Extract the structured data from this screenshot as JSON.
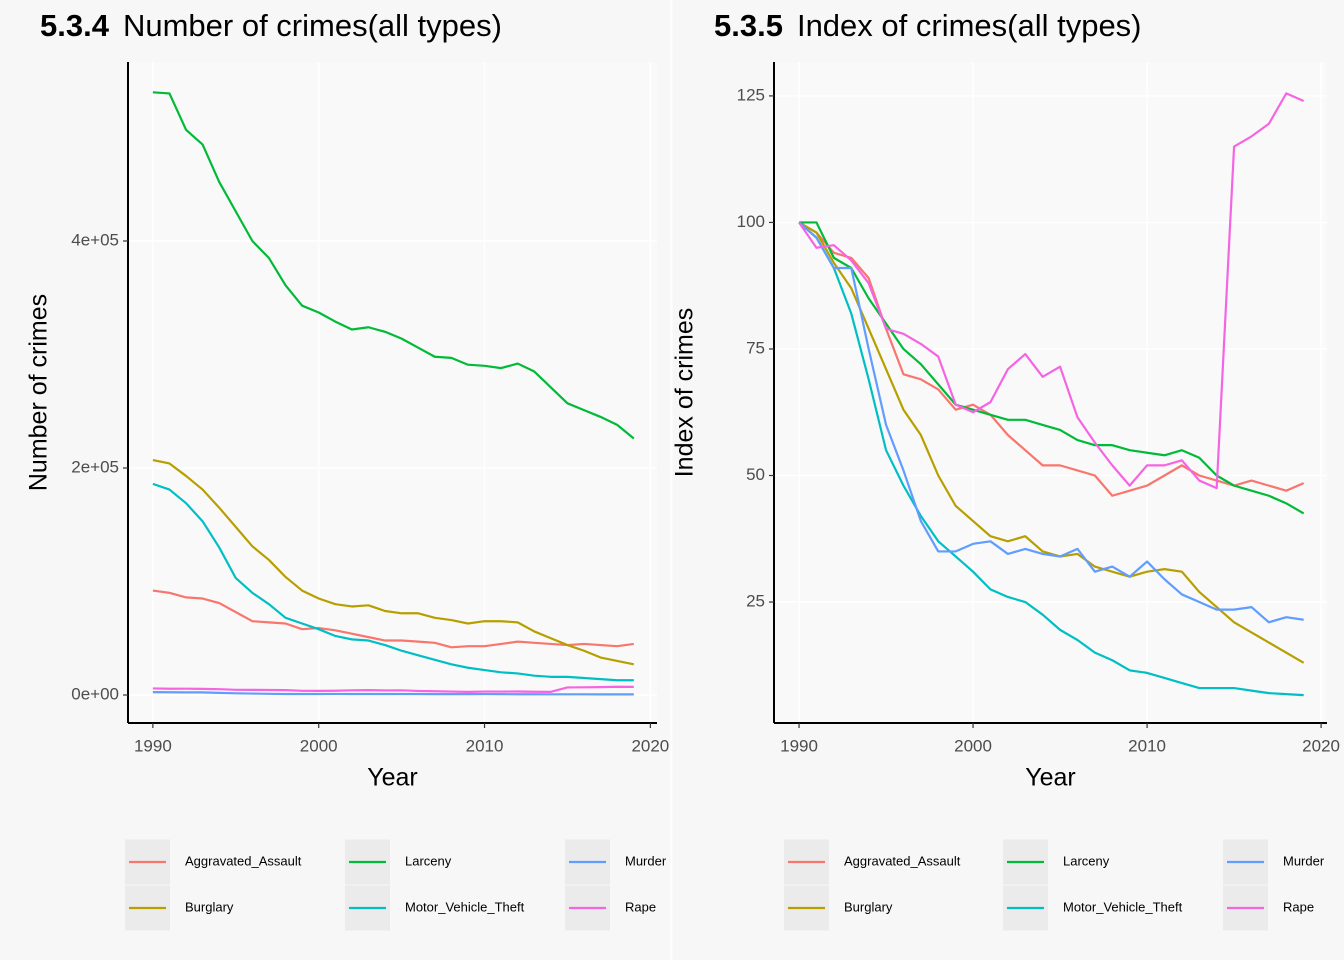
{
  "chart_data": [
    {
      "type": "line",
      "figure_number": "5.3.4",
      "title": "Number of crimes(all types)",
      "x_label": "Year",
      "y_label": "Number of crimes",
      "x": [
        1990,
        1991,
        1992,
        1993,
        1994,
        1995,
        1996,
        1997,
        1998,
        1999,
        2000,
        2001,
        2002,
        2003,
        2004,
        2005,
        2006,
        2007,
        2008,
        2009,
        2010,
        2011,
        2012,
        2013,
        2014,
        2015,
        2016,
        2017,
        2018,
        2019
      ],
      "xlim": [
        1988.5,
        2020.4
      ],
      "xticks": [
        1990,
        2000,
        2010,
        2020
      ],
      "ylim": [
        -24670,
        557700
      ],
      "yticks": [
        {
          "value": 0,
          "label": "0e+00"
        },
        {
          "value": 200000,
          "label": "2e+05"
        },
        {
          "value": 400000,
          "label": "4e+05"
        }
      ],
      "grid": true,
      "legend": "bottom",
      "series": [
        {
          "name": "Aggravated_Assault",
          "color": "#F8766D",
          "values": [
            92000,
            90000,
            86000,
            85000,
            81000,
            73000,
            65000,
            64000,
            63000,
            58000,
            59000,
            57000,
            54000,
            51000,
            48000,
            48000,
            47000,
            46000,
            42000,
            43000,
            43000,
            45000,
            47000,
            46000,
            45000,
            44000,
            45000,
            44000,
            43000,
            45000
          ]
        },
        {
          "name": "Burglary",
          "color": "#B79F00",
          "values": [
            207000,
            204000,
            193000,
            181000,
            165000,
            148000,
            131000,
            119000,
            104000,
            92000,
            85000,
            80000,
            78000,
            79000,
            74000,
            72000,
            72000,
            68000,
            66000,
            63000,
            65000,
            65000,
            64000,
            56000,
            50000,
            44000,
            39000,
            33000,
            30000,
            27000
          ]
        },
        {
          "name": "Larceny",
          "color": "#00BA38",
          "values": [
            531000,
            530000,
            498000,
            485000,
            452000,
            426000,
            400000,
            385000,
            361000,
            343000,
            337000,
            329000,
            322000,
            324000,
            320000,
            314000,
            306000,
            298000,
            297000,
            291000,
            290000,
            288000,
            292000,
            285000,
            271000,
            257000,
            251000,
            245000,
            238000,
            226000
          ]
        },
        {
          "name": "Motor_Vehicle_Theft",
          "color": "#00BFC4",
          "values": [
            186000,
            181000,
            169000,
            153000,
            130000,
            103000,
            90000,
            80000,
            68000,
            63000,
            58000,
            52000,
            49000,
            48000,
            44000,
            39000,
            35000,
            31000,
            27000,
            24000,
            22000,
            20000,
            19000,
            17000,
            16000,
            16000,
            15000,
            14000,
            13000,
            13000
          ]
        },
        {
          "name": "Murder",
          "color": "#619CFF",
          "values": [
            2500,
            2430,
            2280,
            2280,
            1880,
            1500,
            1280,
            1030,
            880,
            880,
            910,
            930,
            860,
            890,
            860,
            850,
            890,
            780,
            800,
            750,
            830,
            740,
            660,
            630,
            590,
            590,
            600,
            530,
            550,
            540
          ]
        },
        {
          "name": "Rape",
          "color": "#F564E3",
          "values": [
            5800,
            5510,
            5540,
            5370,
            5100,
            4580,
            4520,
            4410,
            4260,
            3710,
            3630,
            3740,
            4120,
            4290,
            4030,
            4150,
            3570,
            3280,
            3020,
            2780,
            3020,
            3020,
            3070,
            2840,
            2760,
            6670,
            6790,
            6930,
            7280,
            7190
          ]
        }
      ]
    },
    {
      "type": "line",
      "figure_number": "5.3.5",
      "title": "Index of crimes(all types)",
      "x_label": "Year",
      "y_label": "Index of crimes",
      "x": [
        1990,
        1991,
        1992,
        1993,
        1994,
        1995,
        1996,
        1997,
        1998,
        1999,
        2000,
        2001,
        2002,
        2003,
        2004,
        2005,
        2006,
        2007,
        2008,
        2009,
        2010,
        2011,
        2012,
        2013,
        2014,
        2015,
        2016,
        2017,
        2018,
        2019
      ],
      "xlim": [
        1988.56,
        2020.34
      ],
      "xticks": [
        1990,
        2000,
        2010,
        2020
      ],
      "ylim": [
        1.1,
        131.7
      ],
      "yticks": [
        25,
        50,
        75,
        100,
        125
      ],
      "grid": true,
      "legend": "bottom",
      "series": [
        {
          "name": "Aggravated_Assault",
          "color": "#F8766D",
          "values": [
            100,
            98,
            94,
            93,
            89,
            79,
            70,
            69,
            67,
            63,
            64,
            62,
            58,
            55,
            52,
            52,
            51,
            50,
            46,
            47,
            48,
            50,
            52,
            50,
            49,
            48,
            49,
            48,
            47,
            48.5
          ]
        },
        {
          "name": "Burglary",
          "color": "#B79F00",
          "values": [
            100,
            98,
            92,
            87,
            79,
            71,
            63,
            58,
            50,
            44,
            41,
            38,
            37,
            38,
            35,
            34,
            34.5,
            32,
            31,
            30,
            31,
            31.5,
            31,
            27,
            24,
            21,
            19,
            17,
            15,
            13
          ]
        },
        {
          "name": "Larceny",
          "color": "#00BA38",
          "values": [
            100,
            100,
            93,
            91,
            85,
            80,
            75,
            72,
            68,
            64,
            63,
            62,
            61,
            61,
            60,
            59,
            57,
            56,
            56,
            55,
            54.5,
            54,
            55,
            53.5,
            50,
            48,
            47,
            46,
            44.5,
            42.5
          ]
        },
        {
          "name": "Motor_Vehicle_Theft",
          "color": "#00BFC4",
          "values": [
            100,
            97,
            91,
            82,
            69,
            55,
            48,
            42,
            37,
            34,
            31,
            27.5,
            26,
            25,
            22.5,
            19.5,
            17.5,
            15,
            13.5,
            11.5,
            11,
            10,
            9,
            8,
            8,
            8,
            7.5,
            7,
            6.8,
            6.6
          ]
        },
        {
          "name": "Murder",
          "color": "#619CFF",
          "values": [
            100,
            97,
            91,
            91,
            75,
            60,
            51,
            41,
            35,
            35,
            36.5,
            37,
            34.5,
            35.5,
            34.5,
            34,
            35.5,
            31,
            32,
            30,
            33,
            29.5,
            26.5,
            25,
            23.5,
            23.5,
            24,
            21,
            22,
            21.5
          ]
        },
        {
          "name": "Rape",
          "color": "#F564E3",
          "values": [
            100,
            95,
            95.5,
            92.5,
            88,
            79,
            78,
            76,
            73.5,
            64,
            62.5,
            64.5,
            71,
            74,
            69.5,
            71.5,
            61.5,
            56.5,
            52,
            48,
            52,
            52,
            53,
            49,
            47.5,
            115,
            117,
            119.5,
            125.5,
            124
          ]
        }
      ]
    }
  ]
}
